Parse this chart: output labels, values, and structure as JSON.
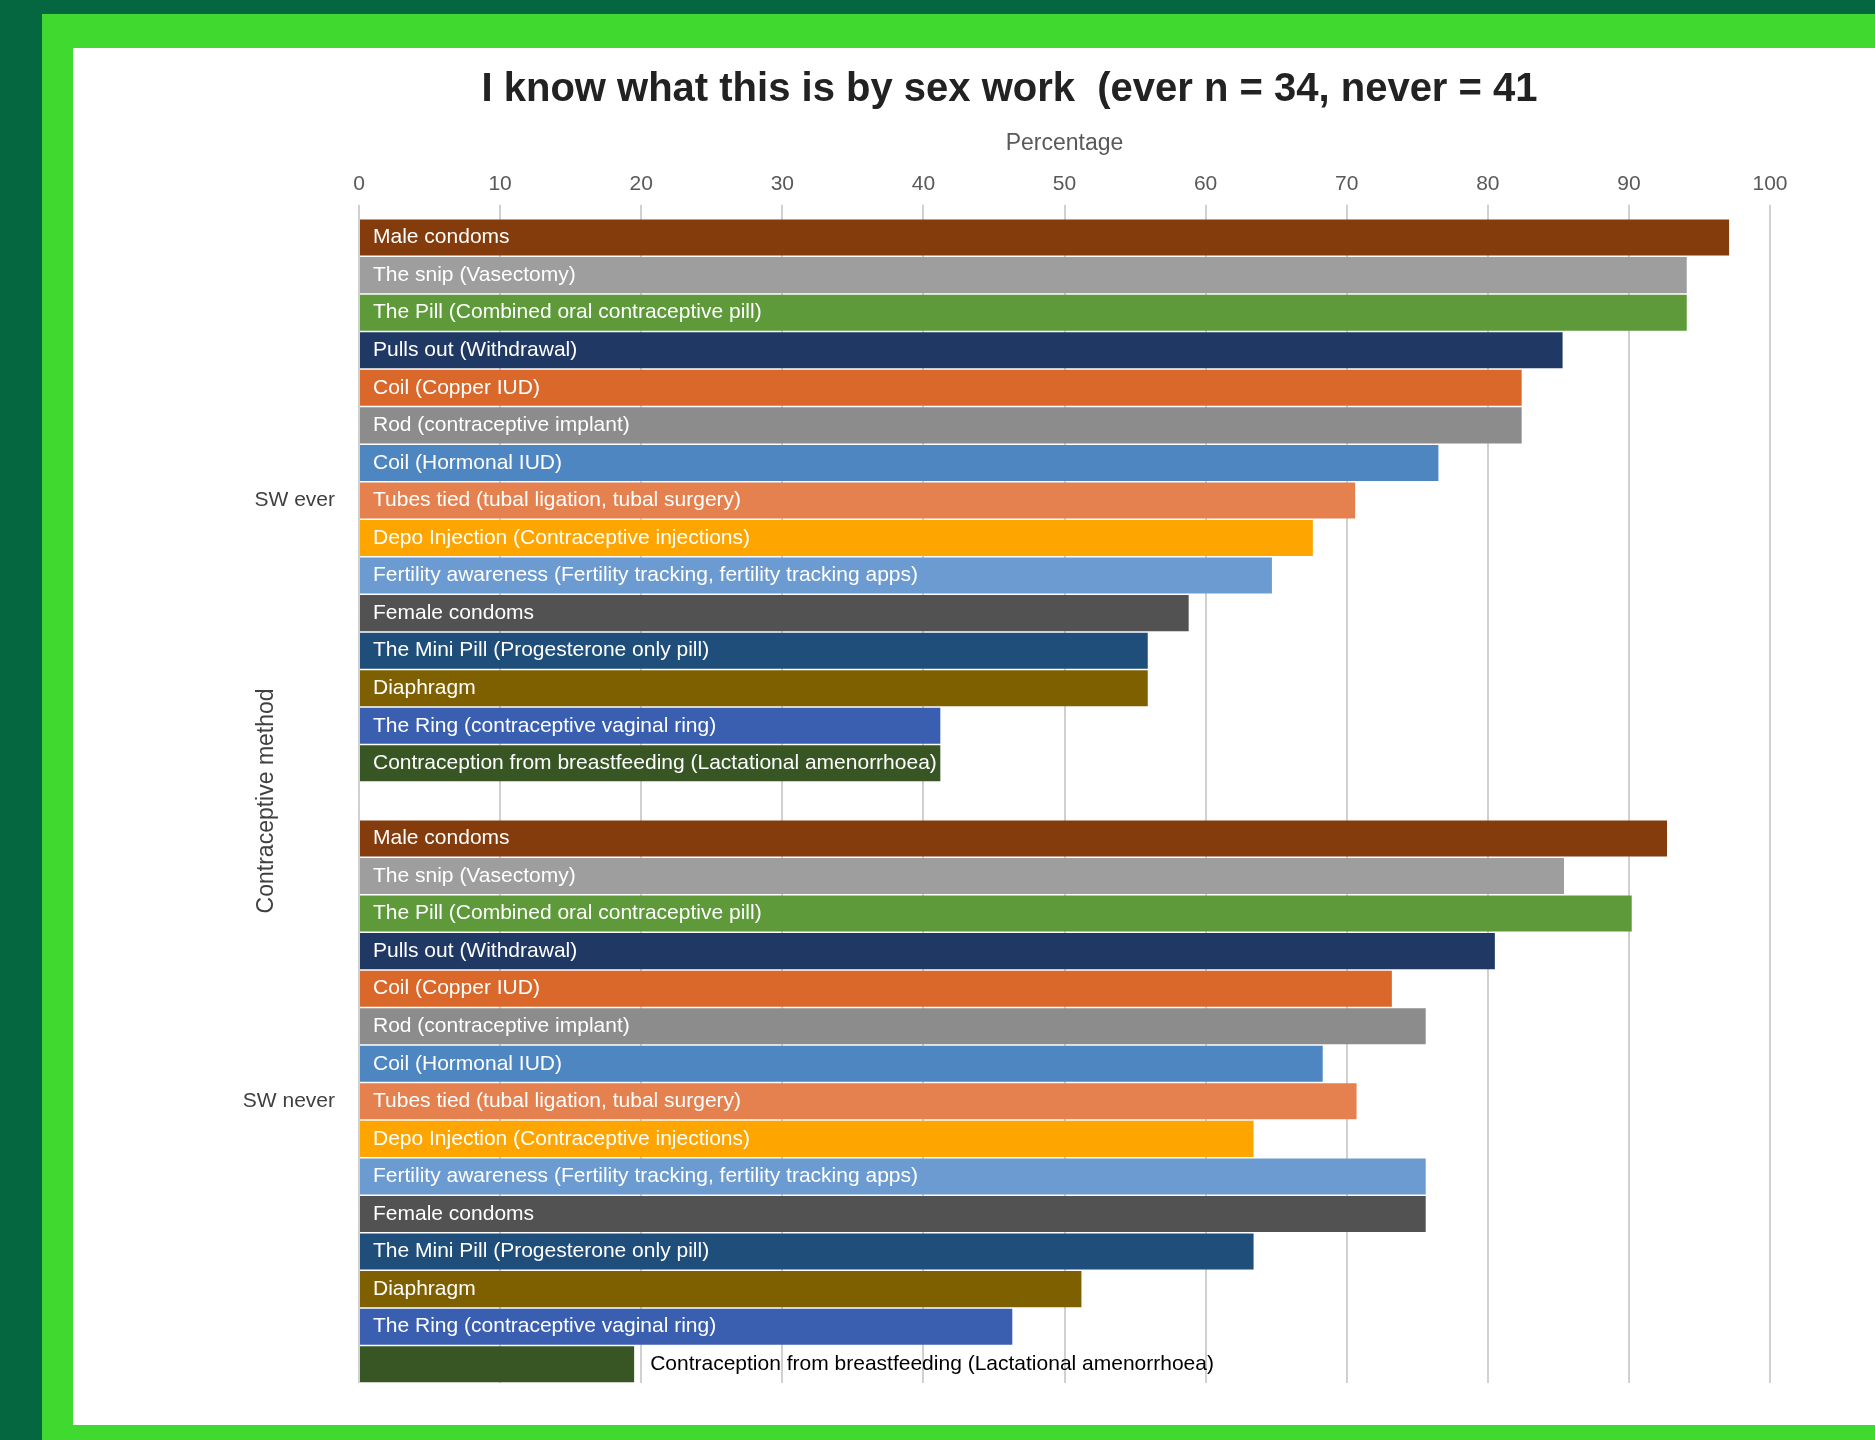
{
  "chart_data": {
    "type": "bar",
    "orientation": "horizontal",
    "title": "I know what this is by sex work  (ever n = 34, never = 41",
    "xlabel": "Percentage",
    "ylabel": "Contraceptive method",
    "annotations": [
      "SW ever",
      "SW never"
    ],
    "categories": [
      "Male condoms",
      "The snip (Vasectomy)",
      "The Pill (Combined oral contraceptive pill)",
      "Pulls out (Withdrawal)",
      "Coil (Copper IUD)",
      "Rod (contraceptive implant)",
      "Coil (Hormonal IUD)",
      "Tubes tied (tubal ligation, tubal surgery)",
      "Depo Injection (Contraceptive injections)",
      "Fertility awareness (Fertility tracking, fertility tracking apps)",
      "Female condoms",
      "The Mini Pill (Progesterone only pill)",
      "Diaphragm",
      "The Ring (contraceptive vaginal ring)",
      "Contraception from breastfeeding (Lactational amenorrhoea)",
      null,
      "Male condoms",
      "The snip (Vasectomy)",
      "The Pill (Combined oral contraceptive pill)",
      "Pulls out (Withdrawal)",
      "Coil (Copper IUD)",
      "Rod (contraceptive implant)",
      "Coil (Hormonal IUD)",
      "Tubes tied (tubal ligation, tubal surgery)",
      "Depo Injection (Contraceptive injections)",
      "Fertility awareness (Fertility tracking, fertility tracking apps)",
      "Female condoms",
      "The Mini Pill (Progesterone only pill)",
      "Diaphragm",
      "The Ring (contraceptive vaginal ring)",
      "Contraception from breastfeeding (Lactational amenorrhoea)"
    ],
    "values": [
      97.1,
      94.1,
      94.1,
      85.3,
      82.4,
      82.4,
      76.5,
      70.6,
      67.6,
      64.7,
      58.8,
      55.9,
      55.9,
      41.2,
      41.2,
      null,
      92.7,
      85.4,
      90.2,
      80.5,
      73.2,
      75.6,
      68.3,
      70.7,
      63.4,
      75.6,
      75.6,
      63.4,
      51.2,
      46.3,
      19.5
    ],
    "colors": [
      "#843c0c",
      "#9e9e9e",
      "#5e9a3a",
      "#203864",
      "#d9682a",
      "#8c8c8c",
      "#4e86c2",
      "#e4814f",
      "#ffa500",
      "#6b9bd0",
      "#525252",
      "#1f4e7a",
      "#7f6000",
      "#3a5fb0",
      "#375623",
      "#ffffff",
      "#843c0c",
      "#9e9e9e",
      "#5e9a3a",
      "#203864",
      "#d9682a",
      "#8c8c8c",
      "#4e86c2",
      "#e4814f",
      "#ffa500",
      "#6b9bd0",
      "#525252",
      "#1f4e7a",
      "#7f6000",
      "#3a5fb0",
      "#375623"
    ],
    "xlim": [
      0,
      100
    ],
    "xticks": [
      0,
      10,
      20,
      30,
      40,
      50,
      60,
      70,
      80,
      90,
      100
    ],
    "grid": "x",
    "legend": false
  }
}
